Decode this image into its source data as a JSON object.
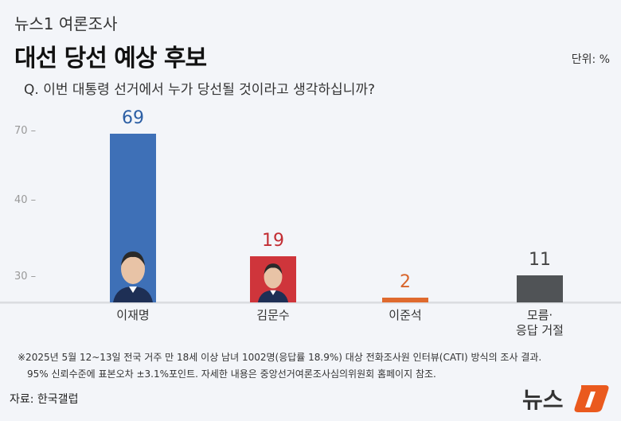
{
  "header": {
    "kicker": "뉴스1 여론조사",
    "title": "대선 당선 예상 후보",
    "unit": "단위: %",
    "question": "Q. 이번 대통령 선거에서 누가 당선될 것이라고 생각하십니까?"
  },
  "chart_data": {
    "type": "bar",
    "categories": [
      "이재명",
      "김문수",
      "이준석",
      "모름·\n응답 거절"
    ],
    "category_lines": [
      [
        "이재명"
      ],
      [
        "김문수"
      ],
      [
        "이준석"
      ],
      [
        "모름·",
        "응답 거절"
      ]
    ],
    "values": [
      69,
      19,
      2,
      11
    ],
    "value_labels": [
      "69",
      "19",
      "2",
      "11"
    ],
    "colors": [
      "#3e70b7",
      "#cf353b",
      "#df6a2e",
      "#505356"
    ],
    "label_colors": [
      "#2b5ea4",
      "#c22d33",
      "#d8642a",
      "#444444"
    ],
    "y_ticks": [
      "70",
      "40",
      "30"
    ],
    "ylabel": "",
    "xlabel": "",
    "grid": false
  },
  "footer": {
    "note1": "※2025년 5월 12~13일 전국 거주 만 18세 이상 남녀 1002명(응답률 18.9%) 대상 전화조사원 인터뷰(CATI) 방식의 조사 결과.",
    "note2": "95% 신뢰수준에 표본오차 ±3.1%포인트. 자세한 내용은 중앙선거여론조사심의위원회 홈페이지 참조.",
    "source": "자료: 한국갤럽",
    "logo_text": "뉴스1"
  }
}
